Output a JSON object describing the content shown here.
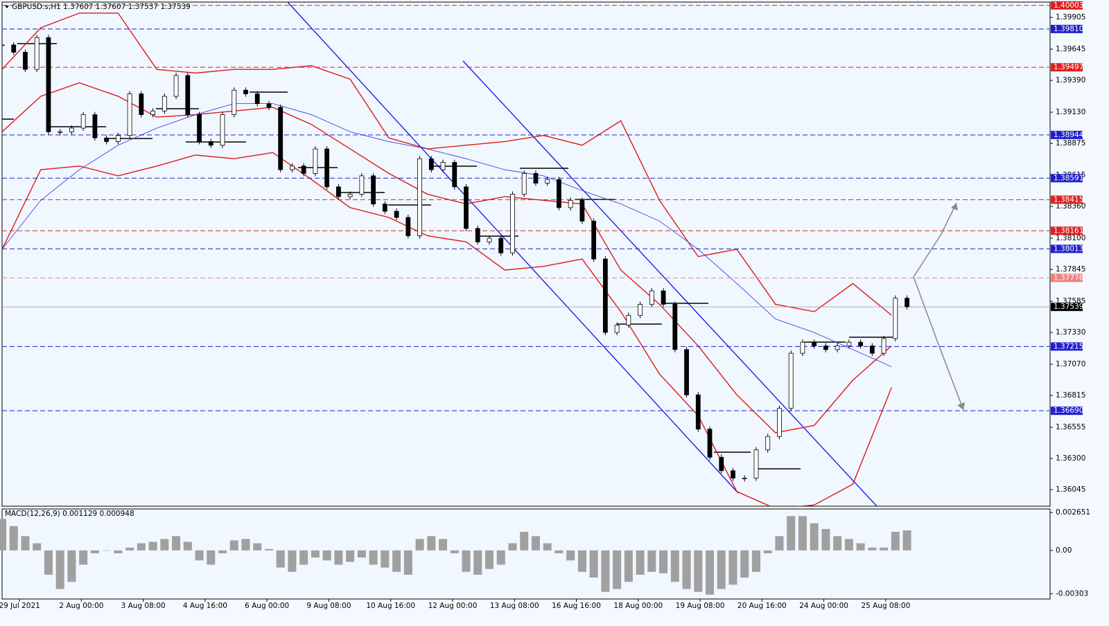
{
  "chart_data": [
    {
      "type": "candlestick",
      "title": "GBPUSD.s,H1  1.37607 1.37607 1.37537 1.37539",
      "x": [
        0,
        6,
        12,
        18,
        24,
        30,
        36,
        42,
        48,
        54,
        60,
        66,
        72,
        78,
        84,
        90,
        96,
        102,
        108,
        114,
        120,
        126,
        132,
        138,
        144,
        150,
        156,
        162,
        168,
        174,
        180,
        186,
        192,
        198,
        204,
        210,
        216,
        222,
        228,
        234,
        240,
        246,
        252,
        258,
        264,
        270,
        276,
        282,
        288,
        294,
        300,
        306,
        312,
        318,
        324,
        330,
        336,
        342,
        348,
        354,
        360,
        366,
        372,
        378,
        384,
        390,
        396,
        402,
        408,
        414,
        420,
        426,
        432,
        438,
        444,
        450,
        456,
        462,
        468
      ],
      "values": [
        1.3968,
        1.3962,
        1.3948,
        1.3974,
        1.3897,
        1.3897,
        1.39,
        1.3911,
        1.3892,
        1.3889,
        1.3894,
        1.3928,
        1.3911,
        1.3914,
        1.3926,
        1.3943,
        1.3911,
        1.3889,
        1.3886,
        1.3911,
        1.3931,
        1.3928,
        1.392,
        1.3917,
        1.3866,
        1.3869,
        1.3863,
        1.3883,
        1.3852,
        1.3844,
        1.3846,
        1.3861,
        1.3838,
        1.3832,
        1.3827,
        1.3812,
        1.3875,
        1.3866,
        1.3872,
        1.3852,
        1.3818,
        1.3807,
        1.381,
        1.3798,
        1.3846,
        1.3863,
        1.3855,
        1.3858,
        1.3835,
        1.3841,
        1.3824,
        1.3793,
        1.3733,
        1.3739,
        1.3747,
        1.3756,
        1.3767,
        1.3756,
        1.3719,
        1.3682,
        1.3654,
        1.3631,
        1.362,
        1.3614,
        1.3614,
        1.3637,
        1.3648,
        1.3671,
        1.3716,
        1.3725,
        1.3722,
        1.3719,
        1.3722,
        1.3725,
        1.3722,
        1.3716,
        1.3728,
        1.3761,
        1.3754
      ],
      "xlim": [
        0,
        542
      ],
      "ylim": [
        1.3591,
        1.4003
      ],
      "yticks": [
        1.39905,
        1.39645,
        {
          "value": 1.3939,
          "label": "1.39390"
        },
        {
          "value": 1.3913,
          "label": "1.39130"
        },
        1.38875,
        1.38615,
        {
          "value": 1.3836,
          "label": "1.38360"
        },
        {
          "value": 1.381,
          "label": "1.38100"
        },
        1.37845,
        1.37585,
        {
          "value": 1.3733,
          "label": "1.37330"
        },
        {
          "value": 1.3707,
          "label": "1.37070"
        },
        1.36815,
        1.36555,
        {
          "value": 1.363,
          "label": "1.36300"
        },
        1.36045
      ],
      "xticks": [
        {
          "value": 9,
          "label": "29 Jul 2021"
        },
        {
          "value": 41,
          "label": "2 Aug 00:00"
        },
        {
          "value": 73,
          "label": "3 Aug 08:00"
        },
        {
          "value": 105,
          "label": "4 Aug 16:00"
        },
        {
          "value": 137,
          "label": "6 Aug 00:00"
        },
        {
          "value": 169,
          "label": "9 Aug 08:00"
        },
        {
          "value": 201,
          "label": "10 Aug 16:00"
        },
        {
          "value": 233,
          "label": "12 Aug 00:00"
        },
        {
          "value": 265,
          "label": "13 Aug 08:00"
        },
        {
          "value": 297,
          "label": "16 Aug 16:00"
        },
        {
          "value": 329,
          "label": "18 Aug 00:00"
        },
        {
          "value": 361,
          "label": "19 Aug 08:00"
        },
        {
          "value": 393,
          "label": "20 Aug 16:00"
        },
        {
          "value": 425,
          "label": "24 Aug 00:00"
        },
        {
          "value": 457,
          "label": "25 Aug 08:00"
        }
      ],
      "levels": [
        {
          "value": 1.40003,
          "color": "#e02020"
        },
        {
          "value": 1.3981,
          "label": "1.39810",
          "color": "#2020d0"
        },
        {
          "value": 1.39497,
          "color": "#e02020"
        },
        {
          "value": 1.38944,
          "color": "#2020d0"
        },
        {
          "value": 1.38591,
          "color": "#2020d0"
        },
        {
          "value": 1.38415,
          "color": "#e02020"
        },
        {
          "value": 1.38161,
          "color": "#e02020"
        },
        {
          "value": 1.38013,
          "color": "#2020d0"
        },
        {
          "value": 1.37776,
          "color": "#f08080"
        },
        {
          "value": 1.37215,
          "color": "#2020d0"
        },
        {
          "value": 1.3669,
          "label": "1.36690",
          "color": "#2020d0"
        }
      ],
      "last_price": 1.37539,
      "bands": {
        "x": [
          0,
          20,
          40,
          60,
          80,
          100,
          120,
          140,
          160,
          180,
          200,
          220,
          240,
          260,
          280,
          300,
          320,
          340,
          360,
          380,
          400,
          420,
          440,
          460
        ],
        "upper": [
          1.3948,
          1.3982,
          1.3994,
          1.3994,
          1.3948,
          1.3945,
          1.3948,
          1.3948,
          1.3951,
          1.394,
          1.3892,
          1.3883,
          1.3886,
          1.3889,
          1.3894,
          1.3886,
          1.3906,
          1.3841,
          1.3795,
          1.3801,
          1.3756,
          1.375,
          1.3773,
          1.3747
        ],
        "middle": [
          1.3897,
          1.3926,
          1.3937,
          1.3926,
          1.3909,
          1.3911,
          1.3914,
          1.3917,
          1.3903,
          1.3883,
          1.3863,
          1.3846,
          1.3838,
          1.3844,
          1.3841,
          1.3838,
          1.3784,
          1.3756,
          1.3722,
          1.3682,
          1.3651,
          1.3657,
          1.3694,
          1.3722
        ],
        "lower": [
          1.3801,
          1.3866,
          1.3869,
          1.3861,
          1.3869,
          1.3878,
          1.3875,
          1.388,
          1.3858,
          1.3835,
          1.3827,
          1.3812,
          1.3807,
          1.3784,
          1.3787,
          1.3793,
          1.375,
          1.3699,
          1.3665,
          1.3603,
          1.3589,
          1.3592,
          1.3609,
          1.3688
        ],
        "ma": [
          1.3801,
          1.3841,
          1.3866,
          1.3886,
          1.39,
          1.3911,
          1.392,
          1.392,
          1.3911,
          1.3897,
          1.3889,
          1.3883,
          1.3875,
          1.3866,
          1.3861,
          1.3849,
          1.3838,
          1.3824,
          1.3801,
          1.3773,
          1.3744,
          1.3733,
          1.3719,
          1.3705
        ],
        "band_color": "#e01818",
        "ma_color": "#3030e0"
      }
    },
    {
      "type": "histogram",
      "title": "MACD(12,26,9) 0.001129 0.000948",
      "values": [
        0.0022,
        0.0017,
        0.001,
        0.0005,
        -0.0017,
        -0.0027,
        -0.0022,
        -0.001,
        -0.0002,
        0,
        -0.0002,
        0.0002,
        0.0005,
        0.0006,
        0.0008,
        0.001,
        0.0006,
        -0.0007,
        -0.001,
        -0.0002,
        0.0007,
        0.0008,
        0.0005,
        0.0001,
        -0.0012,
        -0.0015,
        -0.001,
        -0.0005,
        -0.0007,
        -0.001,
        -0.0008,
        -0.0005,
        -0.001,
        -0.0012,
        -0.0015,
        -0.0017,
        0.0008,
        0.001,
        0.0008,
        -0.0002,
        -0.0015,
        -0.0017,
        -0.0013,
        -0.001,
        0.0005,
        0.0013,
        0.001,
        0.0005,
        -0.0002,
        -0.0007,
        -0.0015,
        -0.0019,
        -0.0029,
        -0.0027,
        -0.0022,
        -0.0017,
        -0.0015,
        -0.0016,
        -0.0022,
        -0.0027,
        -0.0029,
        -0.0031,
        -0.0027,
        -0.0024,
        -0.0019,
        -0.0015,
        -0.0002,
        0.001,
        0.0024,
        0.0024,
        0.0019,
        0.0015,
        0.001,
        0.0008,
        0.0005,
        0.0002,
        0.0002,
        0.0013,
        0.0014
      ],
      "color": "#a0a0a0",
      "ylim": [
        -0.0034,
        0.0029
      ],
      "yticks": [
        0.002651,
        {
          "value": 0,
          "label": "0.00"
        },
        -0.00303
      ]
    }
  ]
}
